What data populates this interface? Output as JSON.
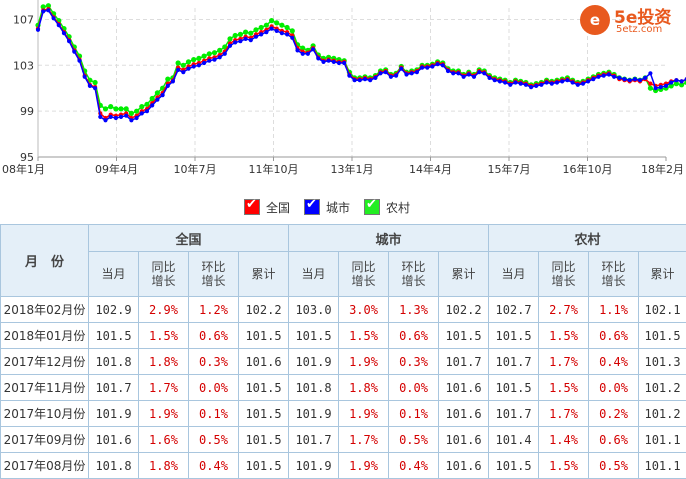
{
  "brand": {
    "icon_label": "e",
    "name": "5e投资",
    "url": "5etz.com"
  },
  "chart_data": {
    "type": "line",
    "title": "",
    "xlabel": "",
    "ylabel": "",
    "ylim": [
      95,
      108
    ],
    "yticks": [
      95,
      99,
      103,
      107
    ],
    "x_ticks": [
      "08年1月",
      "09年4月",
      "10年7月",
      "11年10月",
      "13年1月",
      "14年4月",
      "15年7月",
      "16年10月",
      "18年2月"
    ],
    "grid": true,
    "n_points": 122,
    "series": [
      {
        "name": "全国",
        "color": "#ff0000",
        "values": [
          106.2,
          107.8,
          107.9,
          107.2,
          106.6,
          105.9,
          105.2,
          104.3,
          103.5,
          102.1,
          101.3,
          101.1,
          98.8,
          98.4,
          98.7,
          98.6,
          98.7,
          98.8,
          98.4,
          98.6,
          99.0,
          99.2,
          99.7,
          100.2,
          100.6,
          101.4,
          101.7,
          102.8,
          102.6,
          102.9,
          103.1,
          103.2,
          103.4,
          103.6,
          103.7,
          103.9,
          104.2,
          104.9,
          105.2,
          105.3,
          105.5,
          105.4,
          105.7,
          105.9,
          106.1,
          106.4,
          106.2,
          106.0,
          105.9,
          105.6,
          104.5,
          104.2,
          104.1,
          104.5,
          103.7,
          103.4,
          103.5,
          103.4,
          103.3,
          103.3,
          102.2,
          101.8,
          101.8,
          101.9,
          101.8,
          102.0,
          102.4,
          102.5,
          102.1,
          102.2,
          102.8,
          102.3,
          102.4,
          102.5,
          102.9,
          102.9,
          103.0,
          103.2,
          103.1,
          102.6,
          102.4,
          102.4,
          102.1,
          102.3,
          102.1,
          102.5,
          102.4,
          102.0,
          101.8,
          101.7,
          101.6,
          101.4,
          101.6,
          101.5,
          101.4,
          101.2,
          101.3,
          101.4,
          101.6,
          101.5,
          101.6,
          101.7,
          101.8,
          101.6,
          101.4,
          101.5,
          101.7,
          101.9,
          102.1,
          102.2,
          102.3,
          102.1,
          101.8,
          101.7,
          101.6,
          101.7,
          101.6,
          101.8,
          101.4,
          101.2,
          101.3,
          101.4,
          101.6,
          101.7,
          101.6,
          101.8,
          101.5,
          101.6,
          101.6,
          101.7,
          101.9,
          102.9
        ]
      },
      {
        "name": "城市",
        "color": "#0000ff",
        "values": [
          106.1,
          107.7,
          107.8,
          107.1,
          106.5,
          105.8,
          105.1,
          104.2,
          103.4,
          102.0,
          101.2,
          101.0,
          98.5,
          98.2,
          98.5,
          98.4,
          98.5,
          98.6,
          98.2,
          98.4,
          98.8,
          99.0,
          99.5,
          100.0,
          100.4,
          101.2,
          101.6,
          102.6,
          102.4,
          102.7,
          102.9,
          103.0,
          103.2,
          103.4,
          103.5,
          103.7,
          104.0,
          104.7,
          105.0,
          105.1,
          105.3,
          105.2,
          105.5,
          105.7,
          105.9,
          106.2,
          106.0,
          105.8,
          105.7,
          105.4,
          104.3,
          104.0,
          104.0,
          104.4,
          103.6,
          103.3,
          103.4,
          103.3,
          103.2,
          103.2,
          102.1,
          101.7,
          101.7,
          101.8,
          101.7,
          101.9,
          102.3,
          102.4,
          102.0,
          102.1,
          102.7,
          102.2,
          102.3,
          102.4,
          102.8,
          102.8,
          102.9,
          103.1,
          103.0,
          102.5,
          102.3,
          102.3,
          102.0,
          102.2,
          102.0,
          102.4,
          102.3,
          101.9,
          101.7,
          101.6,
          101.5,
          101.3,
          101.5,
          101.4,
          101.3,
          101.1,
          101.2,
          101.3,
          101.5,
          101.4,
          101.5,
          101.6,
          101.7,
          101.5,
          101.3,
          101.4,
          101.6,
          101.8,
          102.0,
          102.1,
          102.2,
          102.0,
          101.9,
          101.8,
          101.7,
          101.8,
          101.7,
          101.9,
          102.3,
          101.0,
          101.1,
          101.2,
          101.5,
          101.7,
          101.6,
          101.8,
          101.5,
          101.7,
          101.7,
          101.8,
          101.9,
          103.0
        ]
      },
      {
        "name": "农村",
        "color": "#00ee00",
        "values": [
          106.5,
          108.1,
          108.2,
          107.5,
          106.9,
          106.2,
          105.5,
          104.6,
          103.8,
          102.5,
          101.7,
          101.5,
          99.5,
          99.2,
          99.4,
          99.2,
          99.2,
          99.2,
          98.8,
          99.0,
          99.4,
          99.6,
          100.1,
          100.6,
          101.0,
          101.8,
          101.9,
          103.2,
          103.0,
          103.3,
          103.5,
          103.6,
          103.8,
          104.0,
          104.1,
          104.3,
          104.6,
          105.3,
          105.6,
          105.7,
          105.9,
          105.8,
          106.1,
          106.3,
          106.5,
          106.9,
          106.7,
          106.5,
          106.3,
          106.0,
          104.8,
          104.5,
          104.3,
          104.7,
          103.9,
          103.6,
          103.7,
          103.6,
          103.5,
          103.4,
          102.4,
          101.9,
          101.9,
          102.0,
          101.9,
          102.1,
          102.5,
          102.6,
          102.2,
          102.3,
          102.9,
          102.4,
          102.5,
          102.6,
          103.0,
          103.0,
          103.1,
          103.3,
          103.2,
          102.7,
          102.5,
          102.5,
          102.2,
          102.4,
          102.2,
          102.6,
          102.5,
          102.1,
          101.9,
          101.8,
          101.7,
          101.5,
          101.7,
          101.6,
          101.5,
          101.3,
          101.4,
          101.5,
          101.7,
          101.6,
          101.7,
          101.8,
          101.9,
          101.7,
          101.5,
          101.6,
          101.8,
          102.0,
          102.2,
          102.3,
          102.4,
          102.2,
          101.9,
          101.8,
          101.7,
          101.8,
          101.7,
          101.9,
          101.0,
          100.8,
          100.9,
          101.0,
          101.2,
          101.4,
          101.3,
          101.5,
          101.2,
          101.4,
          101.4,
          101.5,
          101.7,
          102.7
        ]
      }
    ]
  },
  "table": {
    "month_header": "月　份",
    "groups": [
      "全国",
      "城市",
      "农村"
    ],
    "subheaders": [
      "当月",
      "同比\n增长",
      "环比\n增长",
      "累计"
    ],
    "rows": [
      {
        "month": "2018年02月份",
        "cells": [
          "102.9",
          "2.9%",
          "1.2%",
          "102.2",
          "103.0",
          "3.0%",
          "1.3%",
          "102.2",
          "102.7",
          "2.7%",
          "1.1%",
          "102.1"
        ]
      },
      {
        "month": "2018年01月份",
        "cells": [
          "101.5",
          "1.5%",
          "0.6%",
          "101.5",
          "101.5",
          "1.5%",
          "0.6%",
          "101.5",
          "101.5",
          "1.5%",
          "0.6%",
          "101.5"
        ]
      },
      {
        "month": "2017年12月份",
        "cells": [
          "101.8",
          "1.8%",
          "0.3%",
          "101.6",
          "101.9",
          "1.9%",
          "0.3%",
          "101.7",
          "101.7",
          "1.7%",
          "0.4%",
          "101.3"
        ]
      },
      {
        "month": "2017年11月份",
        "cells": [
          "101.7",
          "1.7%",
          "0.0%",
          "101.5",
          "101.8",
          "1.8%",
          "0.0%",
          "101.6",
          "101.5",
          "1.5%",
          "0.0%",
          "101.2"
        ]
      },
      {
        "month": "2017年10月份",
        "cells": [
          "101.9",
          "1.9%",
          "0.1%",
          "101.5",
          "101.9",
          "1.9%",
          "0.1%",
          "101.6",
          "101.7",
          "1.7%",
          "0.2%",
          "101.2"
        ]
      },
      {
        "month": "2017年09月份",
        "cells": [
          "101.6",
          "1.6%",
          "0.5%",
          "101.5",
          "101.7",
          "1.7%",
          "0.5%",
          "101.6",
          "101.4",
          "1.4%",
          "0.6%",
          "101.1"
        ]
      },
      {
        "month": "2017年08月份",
        "cells": [
          "101.8",
          "1.8%",
          "0.4%",
          "101.5",
          "101.9",
          "1.9%",
          "0.4%",
          "101.6",
          "101.5",
          "1.5%",
          "0.5%",
          "101.1"
        ]
      }
    ]
  }
}
